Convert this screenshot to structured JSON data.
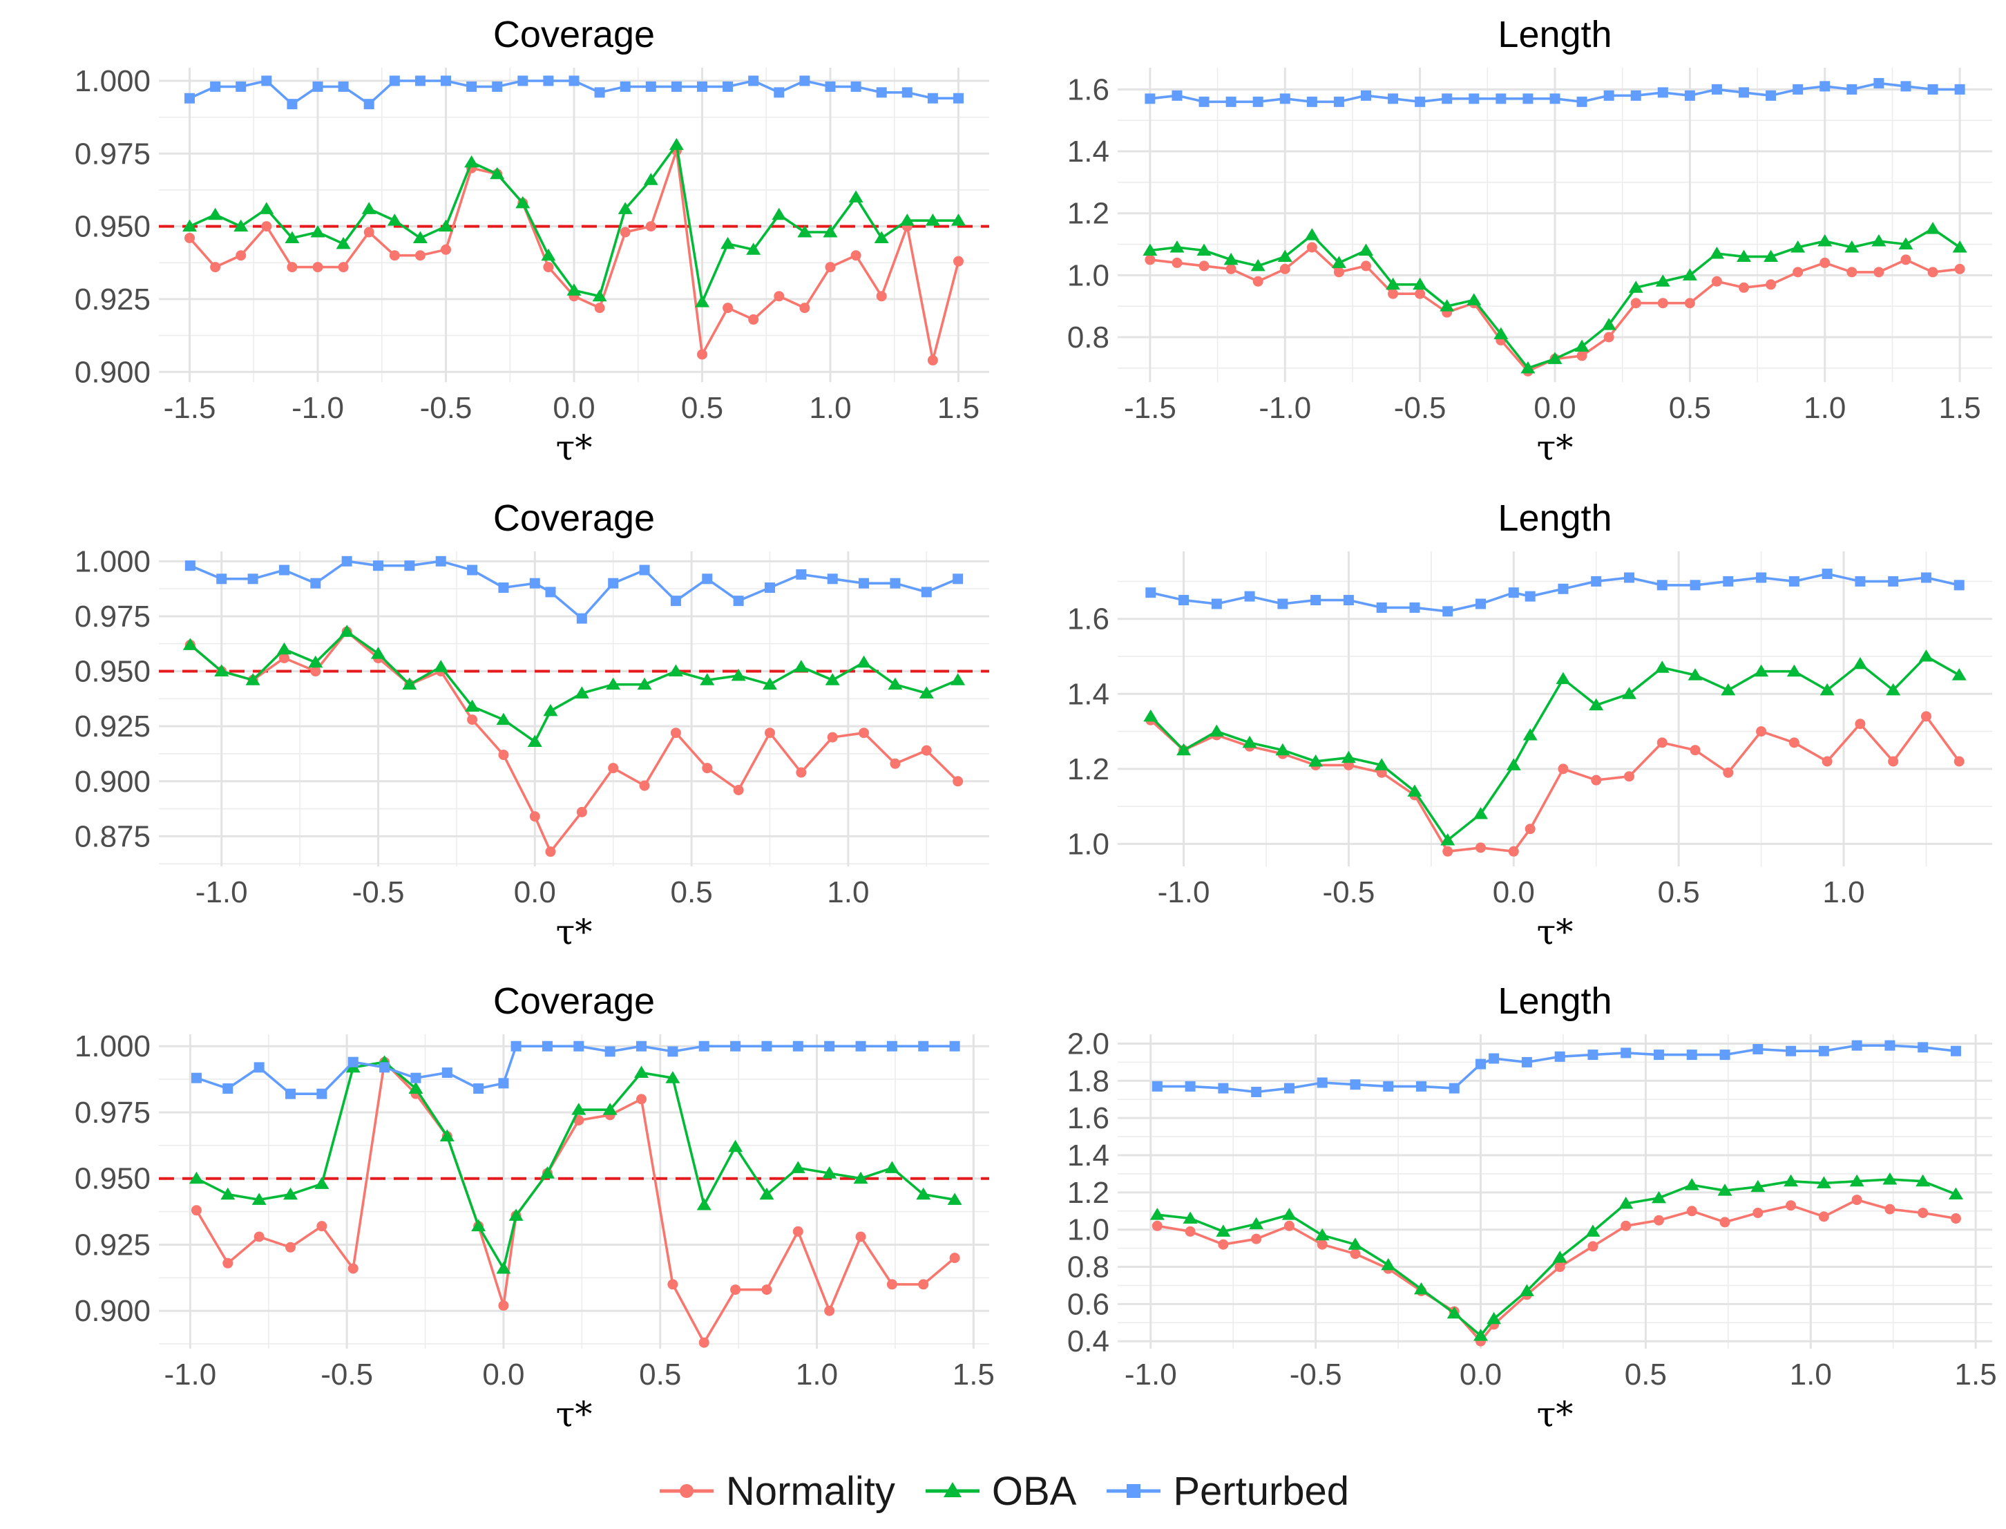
{
  "colors": {
    "Normality": "#F8766D",
    "OBA": "#00BA38",
    "Perturbed": "#619CFF",
    "reference": "#E41A1C"
  },
  "legend": {
    "items": [
      {
        "name": "Normality",
        "marker": "circle"
      },
      {
        "name": "OBA",
        "marker": "triangle"
      },
      {
        "name": "Perturbed",
        "marker": "square"
      }
    ]
  },
  "chart_data": [
    {
      "type": "line",
      "title": "Coverage",
      "xlabel": "τ*",
      "ylabel": "",
      "xlim": [
        -1.62,
        1.62
      ],
      "ylim": [
        0.8965,
        1.0045
      ],
      "xticks": [
        -1.5,
        -1.0,
        -0.5,
        0.0,
        0.5,
        1.0,
        1.5
      ],
      "xtick_labels": [
        "-1.5",
        "-1.0",
        "-0.5",
        "0.0",
        "0.5",
        "1.0",
        "1.5"
      ],
      "yticks": [
        0.9,
        0.925,
        0.95,
        0.975,
        1.0
      ],
      "ytick_labels": [
        "0.900",
        "0.925",
        "0.950",
        "0.975",
        "1.000"
      ],
      "reference_line": 0.95,
      "x": [
        -1.5,
        -1.4,
        -1.3,
        -1.2,
        -1.1,
        -1.0,
        -0.9,
        -0.8,
        -0.7,
        -0.6,
        -0.5,
        -0.4,
        -0.3,
        -0.2,
        -0.1,
        0.0,
        0.1,
        0.2,
        0.3,
        0.4,
        0.5,
        0.6,
        0.7,
        0.8,
        0.9,
        1.0,
        1.1,
        1.2,
        1.3,
        1.4,
        1.5
      ],
      "series": [
        {
          "name": "Normality",
          "values": [
            0.946,
            0.936,
            0.94,
            0.95,
            0.936,
            0.936,
            0.936,
            0.948,
            0.94,
            0.94,
            0.942,
            0.97,
            0.968,
            0.958,
            0.936,
            0.926,
            0.922,
            0.948,
            0.95,
            0.976,
            0.906,
            0.922,
            0.918,
            0.926,
            0.922,
            0.936,
            0.94,
            0.926,
            0.95,
            0.904,
            0.938
          ]
        },
        {
          "name": "OBA",
          "values": [
            0.95,
            0.954,
            0.95,
            0.956,
            0.946,
            0.948,
            0.944,
            0.956,
            0.952,
            0.946,
            0.95,
            0.972,
            0.968,
            0.958,
            0.94,
            0.928,
            0.926,
            0.956,
            0.966,
            0.978,
            0.924,
            0.944,
            0.942,
            0.954,
            0.948,
            0.948,
            0.96,
            0.946,
            0.952,
            0.952,
            0.952
          ]
        },
        {
          "name": "Perturbed",
          "values": [
            0.994,
            0.998,
            0.998,
            1.0,
            0.992,
            0.998,
            0.998,
            0.992,
            1.0,
            1.0,
            1.0,
            0.998,
            0.998,
            1.0,
            1.0,
            1.0,
            0.996,
            0.998,
            0.998,
            0.998,
            0.998,
            0.998,
            1.0,
            0.996,
            1.0,
            0.998,
            0.998,
            0.996,
            0.996,
            0.994,
            0.994
          ]
        }
      ]
    },
    {
      "type": "line",
      "title": "Length",
      "xlabel": "τ*",
      "ylabel": "",
      "xlim": [
        -1.62,
        1.62
      ],
      "ylim": [
        0.655,
        1.67
      ],
      "xticks": [
        -1.5,
        -1.0,
        -0.5,
        0.0,
        0.5,
        1.0,
        1.5
      ],
      "xtick_labels": [
        "-1.5",
        "-1.0",
        "-0.5",
        "0.0",
        "0.5",
        "1.0",
        "1.5"
      ],
      "yticks": [
        0.8,
        1.0,
        1.2,
        1.4,
        1.6
      ],
      "ytick_labels": [
        "0.8",
        "1.0",
        "1.2",
        "1.4",
        "1.6"
      ],
      "x": [
        -1.5,
        -1.4,
        -1.3,
        -1.2,
        -1.1,
        -1.0,
        -0.9,
        -0.8,
        -0.7,
        -0.6,
        -0.5,
        -0.4,
        -0.3,
        -0.2,
        -0.1,
        0.0,
        0.1,
        0.2,
        0.3,
        0.4,
        0.5,
        0.6,
        0.7,
        0.8,
        0.9,
        1.0,
        1.1,
        1.2,
        1.3,
        1.4,
        1.5
      ],
      "series": [
        {
          "name": "Normality",
          "values": [
            1.05,
            1.04,
            1.03,
            1.02,
            0.98,
            1.02,
            1.09,
            1.01,
            1.03,
            0.94,
            0.94,
            0.88,
            0.91,
            0.79,
            0.69,
            0.73,
            0.74,
            0.8,
            0.91,
            0.91,
            0.91,
            0.98,
            0.96,
            0.97,
            1.01,
            1.04,
            1.01,
            1.01,
            1.05,
            1.01,
            1.02
          ]
        },
        {
          "name": "OBA",
          "values": [
            1.08,
            1.09,
            1.08,
            1.05,
            1.03,
            1.06,
            1.13,
            1.04,
            1.08,
            0.97,
            0.97,
            0.9,
            0.92,
            0.81,
            0.7,
            0.73,
            0.77,
            0.84,
            0.96,
            0.98,
            1.0,
            1.07,
            1.06,
            1.06,
            1.09,
            1.11,
            1.09,
            1.11,
            1.1,
            1.15,
            1.09
          ]
        },
        {
          "name": "Perturbed",
          "values": [
            1.57,
            1.58,
            1.56,
            1.56,
            1.56,
            1.57,
            1.56,
            1.56,
            1.58,
            1.57,
            1.56,
            1.57,
            1.57,
            1.57,
            1.57,
            1.57,
            1.56,
            1.58,
            1.58,
            1.59,
            1.58,
            1.6,
            1.59,
            1.58,
            1.6,
            1.61,
            1.6,
            1.62,
            1.61,
            1.6,
            1.6
          ]
        }
      ]
    },
    {
      "type": "line",
      "title": "Coverage",
      "xlabel": "τ*",
      "ylabel": "",
      "xlim": [
        -1.2,
        1.45
      ],
      "ylim": [
        0.8613,
        1.0045
      ],
      "xticks": [
        -1.0,
        -0.5,
        0.0,
        0.5,
        1.0
      ],
      "xtick_labels": [
        "-1.0",
        "-0.5",
        "0.0",
        "0.5",
        "1.0"
      ],
      "yticks": [
        0.875,
        0.9,
        0.925,
        0.95,
        0.975,
        1.0
      ],
      "ytick_labels": [
        "0.875",
        "0.900",
        "0.925",
        "0.950",
        "0.975",
        "1.000"
      ],
      "reference_line": 0.95,
      "x": [
        -1.1,
        -1.0,
        -0.9,
        -0.8,
        -0.7,
        -0.6,
        -0.5,
        -0.4,
        -0.3,
        -0.2,
        -0.1,
        0.0,
        0.05,
        0.15,
        0.25,
        0.35,
        0.45,
        0.55,
        0.65,
        0.75,
        0.85,
        0.95,
        1.05,
        1.15,
        1.25,
        1.35
      ],
      "series": [
        {
          "name": "Normality",
          "values": [
            0.962,
            0.95,
            0.946,
            0.956,
            0.95,
            0.968,
            0.956,
            0.944,
            0.95,
            0.928,
            0.912,
            0.884,
            0.868,
            0.886,
            0.906,
            0.898,
            0.922,
            0.906,
            0.896,
            0.922,
            0.904,
            0.92,
            0.922,
            0.908,
            0.914,
            0.9
          ]
        },
        {
          "name": "OBA",
          "values": [
            0.962,
            0.95,
            0.946,
            0.96,
            0.954,
            0.968,
            0.958,
            0.944,
            0.952,
            0.934,
            0.928,
            0.918,
            0.932,
            0.94,
            0.944,
            0.944,
            0.95,
            0.946,
            0.948,
            0.944,
            0.952,
            0.946,
            0.954,
            0.944,
            0.94,
            0.946
          ]
        },
        {
          "name": "Perturbed",
          "values": [
            0.998,
            0.992,
            0.992,
            0.996,
            0.99,
            1.0,
            0.998,
            0.998,
            1.0,
            0.996,
            0.988,
            0.99,
            0.986,
            0.974,
            0.99,
            0.996,
            0.982,
            0.992,
            0.982,
            0.988,
            0.994,
            0.992,
            0.99,
            0.99,
            0.986,
            0.992
          ]
        }
      ]
    },
    {
      "type": "line",
      "title": "Length",
      "xlabel": "τ*",
      "ylabel": "",
      "xlim": [
        -1.2,
        1.45
      ],
      "ylim": [
        0.94,
        1.78
      ],
      "xticks": [
        -1.0,
        -0.5,
        0.0,
        0.5,
        1.0
      ],
      "xtick_labels": [
        "-1.0",
        "-0.5",
        "0.0",
        "0.5",
        "1.0"
      ],
      "yticks": [
        1.0,
        1.2,
        1.4,
        1.6
      ],
      "ytick_labels": [
        "1.0",
        "1.2",
        "1.4",
        "1.6"
      ],
      "x": [
        -1.1,
        -1.0,
        -0.9,
        -0.8,
        -0.7,
        -0.6,
        -0.5,
        -0.4,
        -0.3,
        -0.2,
        -0.1,
        0.0,
        0.05,
        0.15,
        0.25,
        0.35,
        0.45,
        0.55,
        0.65,
        0.75,
        0.85,
        0.95,
        1.05,
        1.15,
        1.25,
        1.35
      ],
      "series": [
        {
          "name": "Normality",
          "values": [
            1.33,
            1.25,
            1.29,
            1.26,
            1.24,
            1.21,
            1.21,
            1.19,
            1.13,
            0.98,
            0.99,
            0.98,
            1.04,
            1.2,
            1.17,
            1.18,
            1.27,
            1.25,
            1.19,
            1.3,
            1.27,
            1.22,
            1.32,
            1.22,
            1.34,
            1.22
          ]
        },
        {
          "name": "OBA",
          "values": [
            1.34,
            1.25,
            1.3,
            1.27,
            1.25,
            1.22,
            1.23,
            1.21,
            1.14,
            1.01,
            1.08,
            1.21,
            1.29,
            1.44,
            1.37,
            1.4,
            1.47,
            1.45,
            1.41,
            1.46,
            1.46,
            1.41,
            1.48,
            1.41,
            1.5,
            1.45
          ]
        },
        {
          "name": "Perturbed",
          "values": [
            1.67,
            1.65,
            1.64,
            1.66,
            1.64,
            1.65,
            1.65,
            1.63,
            1.63,
            1.62,
            1.64,
            1.67,
            1.66,
            1.68,
            1.7,
            1.71,
            1.69,
            1.69,
            1.7,
            1.71,
            1.7,
            1.72,
            1.7,
            1.7,
            1.71,
            1.69
          ]
        }
      ]
    },
    {
      "type": "line",
      "title": "Coverage",
      "xlabel": "τ*",
      "ylabel": "",
      "xlim": [
        -1.1,
        1.55
      ],
      "ylim": [
        0.8857,
        1.0045
      ],
      "xticks": [
        -1.0,
        -0.5,
        0.0,
        0.5,
        1.0,
        1.5
      ],
      "xtick_labels": [
        "-1.0",
        "-0.5",
        "0.0",
        "0.5",
        "1.0",
        "1.5"
      ],
      "yticks": [
        0.9,
        0.925,
        0.95,
        0.975,
        1.0
      ],
      "ytick_labels": [
        "0.900",
        "0.925",
        "0.950",
        "0.975",
        "1.000"
      ],
      "reference_line": 0.95,
      "x": [
        -0.98,
        -0.88,
        -0.78,
        -0.68,
        -0.58,
        -0.48,
        -0.38,
        -0.28,
        -0.18,
        -0.08,
        0.0,
        0.04,
        0.14,
        0.24,
        0.34,
        0.44,
        0.54,
        0.64,
        0.74,
        0.84,
        0.94,
        1.04,
        1.14,
        1.24,
        1.34,
        1.44
      ],
      "series": [
        {
          "name": "Normality",
          "values": [
            0.938,
            0.918,
            0.928,
            0.924,
            0.932,
            0.916,
            0.994,
            0.982,
            0.966,
            0.932,
            0.902,
            0.936,
            0.952,
            0.972,
            0.974,
            0.98,
            0.91,
            0.888,
            0.908,
            0.908,
            0.93,
            0.9,
            0.928,
            0.91,
            0.91,
            0.92
          ]
        },
        {
          "name": "OBA",
          "values": [
            0.95,
            0.944,
            0.942,
            0.944,
            0.948,
            0.992,
            0.994,
            0.984,
            0.966,
            0.932,
            0.916,
            0.936,
            0.952,
            0.976,
            0.976,
            0.99,
            0.988,
            0.94,
            0.962,
            0.944,
            0.954,
            0.952,
            0.95,
            0.954,
            0.944,
            0.942
          ]
        },
        {
          "name": "Perturbed",
          "values": [
            0.988,
            0.984,
            0.992,
            0.982,
            0.982,
            0.994,
            0.992,
            0.988,
            0.99,
            0.984,
            0.986,
            1.0,
            1.0,
            1.0,
            0.998,
            1.0,
            0.998,
            1.0,
            1.0,
            1.0,
            1.0,
            1.0,
            1.0,
            1.0,
            1.0,
            1.0
          ]
        }
      ]
    },
    {
      "type": "line",
      "title": "Length",
      "xlabel": "τ*",
      "ylabel": "",
      "xlim": [
        -1.1,
        1.55
      ],
      "ylim": [
        0.36,
        2.05
      ],
      "xticks": [
        -1.0,
        -0.5,
        0.0,
        0.5,
        1.0,
        1.5
      ],
      "xtick_labels": [
        "-1.0",
        "-0.5",
        "0.0",
        "0.5",
        "1.0",
        "1.5"
      ],
      "yticks": [
        0.4,
        0.6,
        0.8,
        1.0,
        1.2,
        1.4,
        1.6,
        1.8,
        2.0
      ],
      "ytick_labels": [
        "0.4",
        "0.6",
        "0.8",
        "1.0",
        "1.2",
        "1.4",
        "1.6",
        "1.8",
        "2.0"
      ],
      "x": [
        -0.98,
        -0.88,
        -0.78,
        -0.68,
        -0.58,
        -0.48,
        -0.38,
        -0.28,
        -0.18,
        -0.08,
        0.0,
        0.04,
        0.14,
        0.24,
        0.34,
        0.44,
        0.54,
        0.64,
        0.74,
        0.84,
        0.94,
        1.04,
        1.14,
        1.24,
        1.34,
        1.44
      ],
      "series": [
        {
          "name": "Normality",
          "values": [
            1.02,
            0.99,
            0.92,
            0.95,
            1.02,
            0.92,
            0.87,
            0.79,
            0.67,
            0.56,
            0.4,
            0.49,
            0.65,
            0.8,
            0.91,
            1.02,
            1.05,
            1.1,
            1.04,
            1.09,
            1.13,
            1.07,
            1.16,
            1.11,
            1.09,
            1.06
          ]
        },
        {
          "name": "OBA",
          "values": [
            1.08,
            1.06,
            0.99,
            1.03,
            1.08,
            0.97,
            0.92,
            0.81,
            0.68,
            0.55,
            0.43,
            0.52,
            0.67,
            0.85,
            0.99,
            1.14,
            1.17,
            1.24,
            1.21,
            1.23,
            1.26,
            1.25,
            1.26,
            1.27,
            1.26,
            1.19
          ]
        },
        {
          "name": "Perturbed",
          "values": [
            1.77,
            1.77,
            1.76,
            1.74,
            1.76,
            1.79,
            1.78,
            1.77,
            1.77,
            1.76,
            1.89,
            1.92,
            1.9,
            1.93,
            1.94,
            1.95,
            1.94,
            1.94,
            1.94,
            1.97,
            1.96,
            1.96,
            1.99,
            1.99,
            1.98,
            1.96
          ]
        }
      ]
    }
  ]
}
